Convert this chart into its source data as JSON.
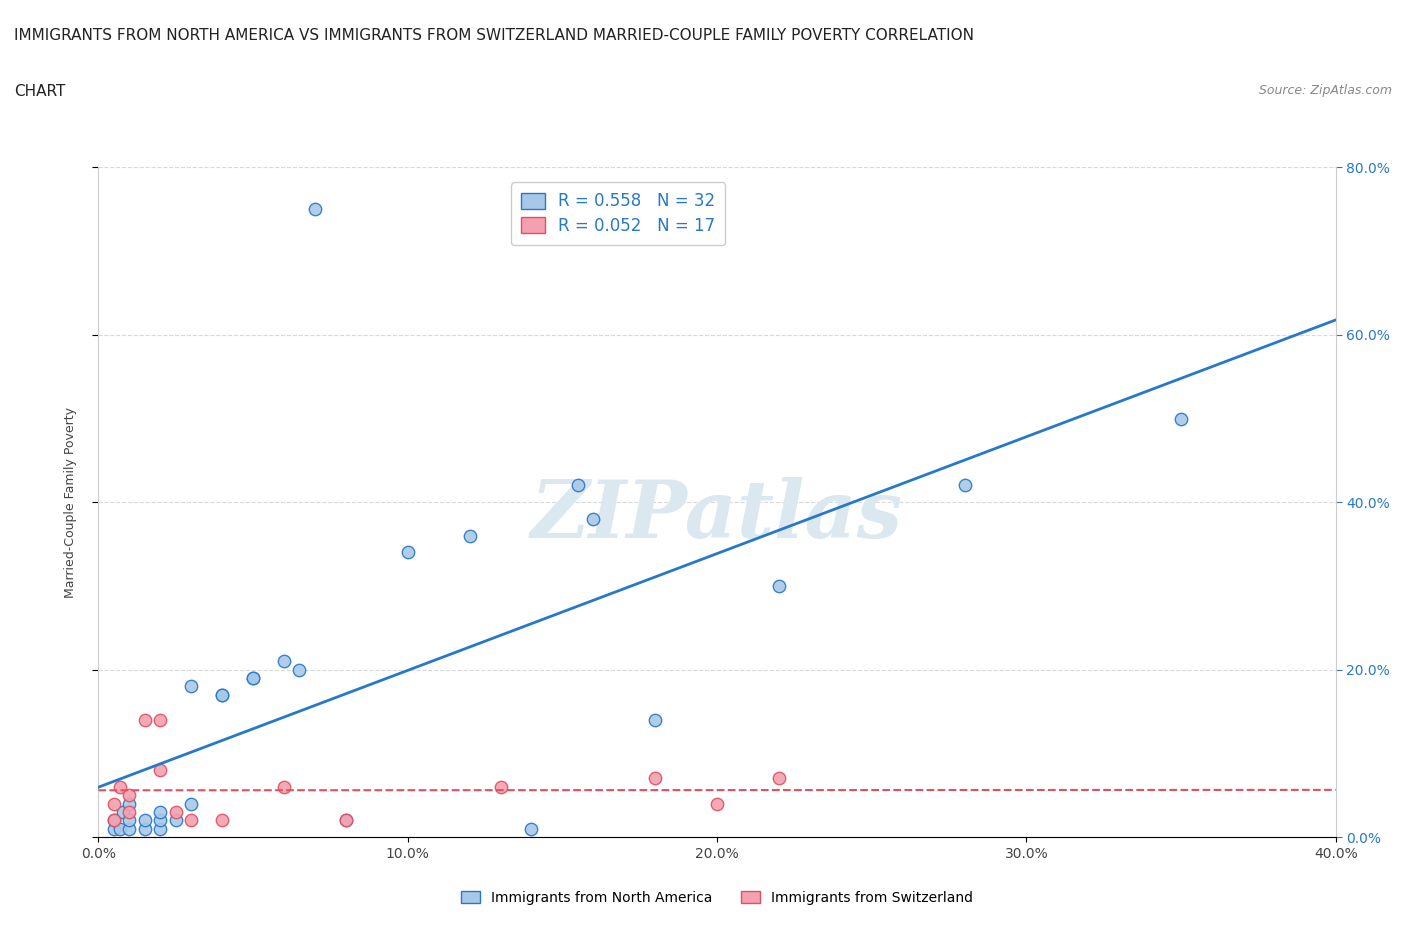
{
  "title_line1": "IMMIGRANTS FROM NORTH AMERICA VS IMMIGRANTS FROM SWITZERLAND MARRIED-COUPLE FAMILY POVERTY CORRELATION",
  "title_line2": "CHART",
  "source_text": "Source: ZipAtlas.com",
  "ylabel": "Married-Couple Family Poverty",
  "xlim": [
    0.0,
    0.4
  ],
  "ylim": [
    0.0,
    0.8
  ],
  "xtick_labels": [
    "0.0%",
    "10.0%",
    "20.0%",
    "30.0%",
    "40.0%"
  ],
  "xtick_vals": [
    0.0,
    0.1,
    0.2,
    0.3,
    0.4
  ],
  "ytick_vals": [
    0.0,
    0.2,
    0.4,
    0.6,
    0.8
  ],
  "ytick_labels": [
    "0.0%",
    "20.0%",
    "40.0%",
    "60.0%",
    "80.0%"
  ],
  "blue_R": 0.558,
  "blue_N": 32,
  "pink_R": 0.052,
  "pink_N": 17,
  "blue_color": "#a8c8e8",
  "pink_color": "#f4a0b0",
  "blue_line_color": "#2878c8",
  "pink_line_color": "#e05060",
  "background_color": "#ffffff",
  "watermark_text": "ZIPatlas",
  "watermark_color": "#dce8f0",
  "legend_label_blue": "Immigrants from North America",
  "legend_label_pink": "Immigrants from Switzerland",
  "blue_x": [
    0.005,
    0.005,
    0.007,
    0.008,
    0.01,
    0.01,
    0.01,
    0.015,
    0.015,
    0.02,
    0.02,
    0.02,
    0.025,
    0.03,
    0.03,
    0.04,
    0.04,
    0.05,
    0.05,
    0.06,
    0.065,
    0.07,
    0.08,
    0.1,
    0.12,
    0.14,
    0.155,
    0.16,
    0.18,
    0.22,
    0.28,
    0.35
  ],
  "blue_y": [
    0.01,
    0.02,
    0.01,
    0.03,
    0.01,
    0.02,
    0.04,
    0.01,
    0.02,
    0.01,
    0.02,
    0.03,
    0.02,
    0.04,
    0.18,
    0.17,
    0.17,
    0.19,
    0.19,
    0.21,
    0.2,
    0.75,
    0.02,
    0.34,
    0.36,
    0.01,
    0.42,
    0.38,
    0.14,
    0.3,
    0.42,
    0.5
  ],
  "pink_x": [
    0.005,
    0.005,
    0.007,
    0.01,
    0.01,
    0.015,
    0.02,
    0.02,
    0.025,
    0.03,
    0.04,
    0.06,
    0.08,
    0.13,
    0.18,
    0.2,
    0.22
  ],
  "pink_y": [
    0.02,
    0.04,
    0.06,
    0.03,
    0.05,
    0.14,
    0.14,
    0.08,
    0.03,
    0.02,
    0.02,
    0.06,
    0.02,
    0.06,
    0.07,
    0.04,
    0.07
  ],
  "grid_color": "#d0d0d0",
  "title_fontsize": 11,
  "axis_label_fontsize": 9,
  "tick_fontsize": 10,
  "right_tick_color": "#2878c8"
}
